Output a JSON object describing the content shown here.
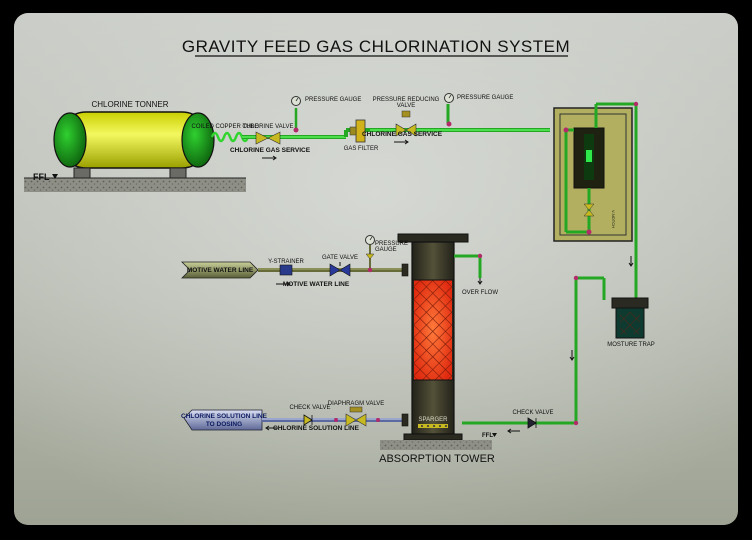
{
  "title": "GRAVITY FEED GAS CHLORINATION SYSTEM",
  "labels": {
    "chlorine_tonner": "CHLORINE TONNER",
    "ffl": "FFL",
    "coiled_copper_tube": "COILED COPPER TUBE",
    "chlorine_valve": "CHLORINE VALVE",
    "chlorine_gas_service_1": "CHLORINE GAS SERVICE",
    "pressure_gauge_1": "PRESSURE GAUGE",
    "gas_filter": "GAS FILTER",
    "pressure_reducing_valve_1": "PRESSURE REDUCING",
    "pressure_reducing_valve_2": "VALVE",
    "pressure_gauge_2": "PRESSURE GAUGE",
    "chlorine_gas_service_2": "CHLORINE GAS SERVICE",
    "motive_water_line_arrow": "MOTIVE WATER LINE",
    "y_strainer": "Y-STRAINER",
    "gate_valve": "GATE VALVE",
    "pressure_gauge_3a": "PRESSURE",
    "pressure_gauge_3b": "GAUGE",
    "motive_water_line": "MOTIVE WATER LINE",
    "over_flow": "OVER FLOW",
    "moisture_trap": "MOSTURE TRAP",
    "check_valve_right": "CHECK VALVE",
    "sparger": "SPARGER",
    "ffl_tower": "FFL",
    "absorption_tower": "ABSORPTION TOWER",
    "check_valve_left": "CHECK VALVE",
    "diaphragm_valve": "DIAPHRAGM VALVE",
    "chlorine_solution_line": "CHLORINE SOLUTION LINE",
    "dosing_arrow_1": "CHLORINE SOLUTION LINE",
    "dosing_arrow_2": "TO DOSING",
    "chlorinator_tag": "V-NOTCH"
  },
  "colors": {
    "pipe_green": "#33dd33",
    "tonner_yellow": "#e8f020",
    "tonner_end_green": "#1ea01e",
    "tower_body": "#3b3a26",
    "tower_glow": "#ff5a1e",
    "panel_olive": "#b2b060",
    "background_light": "#c4c8c0",
    "background_dark": "#9aa090"
  }
}
